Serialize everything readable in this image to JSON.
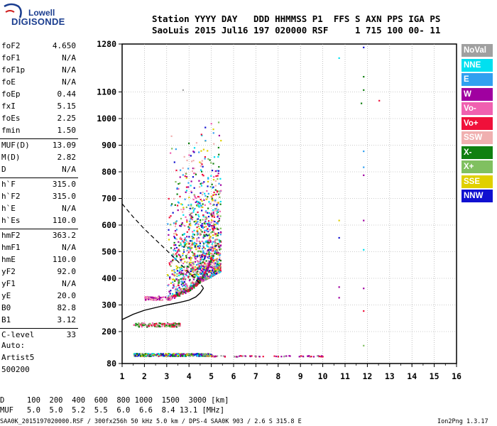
{
  "logo": {
    "line1": "Lowell",
    "line2": "DIGISONDE"
  },
  "header": {
    "line1": "Station YYYY DAY   DDD HHMMSS P1  FFS S AXN PPS IGA PS",
    "line2": "SaoLuis 2015 Jul16 197 020000 RSF     1 715 100 00- 11"
  },
  "params": [
    {
      "label": "foF2",
      "value": "4.650"
    },
    {
      "label": "foF1",
      "value": "N/A"
    },
    {
      "label": "foF1p",
      "value": "N/A"
    },
    {
      "label": "foE",
      "value": "N/A"
    },
    {
      "label": "foEp",
      "value": "0.44"
    },
    {
      "label": "fxI",
      "value": "5.15"
    },
    {
      "label": "foEs",
      "value": "2.25"
    },
    {
      "label": "fmin",
      "value": "1.50"
    },
    {
      "label": "MUF(D)",
      "value": "13.09"
    },
    {
      "label": "M(D)",
      "value": "2.82"
    },
    {
      "label": "D",
      "value": "N/A"
    },
    {
      "label": "h`F",
      "value": "315.0"
    },
    {
      "label": "h`F2",
      "value": "315.0"
    },
    {
      "label": "h`E",
      "value": "N/A"
    },
    {
      "label": "h`Es",
      "value": "110.0"
    },
    {
      "label": "hmF2",
      "value": "363.2"
    },
    {
      "label": "hmF1",
      "value": "N/A"
    },
    {
      "label": "hmE",
      "value": "110.0"
    },
    {
      "label": "yF2",
      "value": "92.0"
    },
    {
      "label": "yF1",
      "value": "N/A"
    },
    {
      "label": "yE",
      "value": "20.0"
    },
    {
      "label": "B0",
      "value": "82.8"
    },
    {
      "label": "B1",
      "value": "3.12"
    },
    {
      "label": "C-level",
      "value": "33"
    }
  ],
  "autoscale": {
    "line1": "Auto:",
    "line2": "Artist5",
    "line3": "500200"
  },
  "legend": [
    {
      "label": "NoVal",
      "color": "#a0a0a0"
    },
    {
      "label": "NNE",
      "color": "#00e0f0"
    },
    {
      "label": "E",
      "color": "#30a0f0"
    },
    {
      "label": "W",
      "color": "#a000a0"
    },
    {
      "label": "Vo-",
      "color": "#f060b0"
    },
    {
      "label": "Vo+",
      "color": "#f0103a"
    },
    {
      "label": "SSW",
      "color": "#f0b0b0"
    },
    {
      "label": "X-",
      "color": "#108010"
    },
    {
      "label": "X+",
      "color": "#80c060"
    },
    {
      "label": "SSE",
      "color": "#e0d000"
    },
    {
      "label": "NNW",
      "color": "#1010d0"
    }
  ],
  "footer": {
    "d_line": "D     100  200  400  600  800 1000  1500  3000 [km]",
    "muf_line": "MUF   5.0  5.0  5.2  5.5  6.0  6.6  8.4 13.1 [MHz]",
    "file_line": "SAA0K_2015197020000.RSF / 300fx256h 50 kHz 5.0 km / DPS-4 SAA0K 903 / 2.6 S 315.8 E",
    "version": "Ion2Png 1.3.17"
  },
  "chart_data": {
    "type": "scatter",
    "xlim": [
      1,
      16
    ],
    "ylim": [
      80,
      1280
    ],
    "xticks": [
      1,
      2,
      3,
      4,
      5,
      6,
      7,
      8,
      9,
      10,
      11,
      12,
      13,
      14,
      15,
      16
    ],
    "yticks": [
      80,
      200,
      300,
      400,
      500,
      600,
      700,
      800,
      900,
      1000,
      1100,
      1280
    ],
    "grid": true,
    "xlabel": "",
    "ylabel": "",
    "profile_curve": {
      "x": [
        1.0,
        1.5,
        2.0,
        2.5,
        3.0,
        3.5,
        4.0,
        4.3,
        4.5,
        4.65
      ],
      "y": [
        245,
        265,
        280,
        290,
        300,
        308,
        318,
        330,
        345,
        363
      ]
    },
    "extrapolated_curve": {
      "x": [
        1.0,
        1.5,
        2.0,
        2.5,
        3.0,
        3.3,
        3.6,
        3.9,
        4.2,
        4.5,
        4.65
      ],
      "y": [
        680,
        630,
        585,
        545,
        505,
        480,
        455,
        430,
        405,
        380,
        363
      ]
    },
    "trace_f2": {
      "x": [
        3.0,
        3.5,
        4.0,
        4.3,
        4.6,
        4.8,
        5.0
      ],
      "y": [
        325,
        340,
        360,
        380,
        410,
        440,
        480
      ]
    },
    "es_layer_x": [
      1.5,
      5.0
    ],
    "es_layer_y": [
      110,
      120
    ],
    "es_trace_x": [
      1.5,
      3.6
    ],
    "es_trace_y": [
      220,
      235
    ]
  }
}
